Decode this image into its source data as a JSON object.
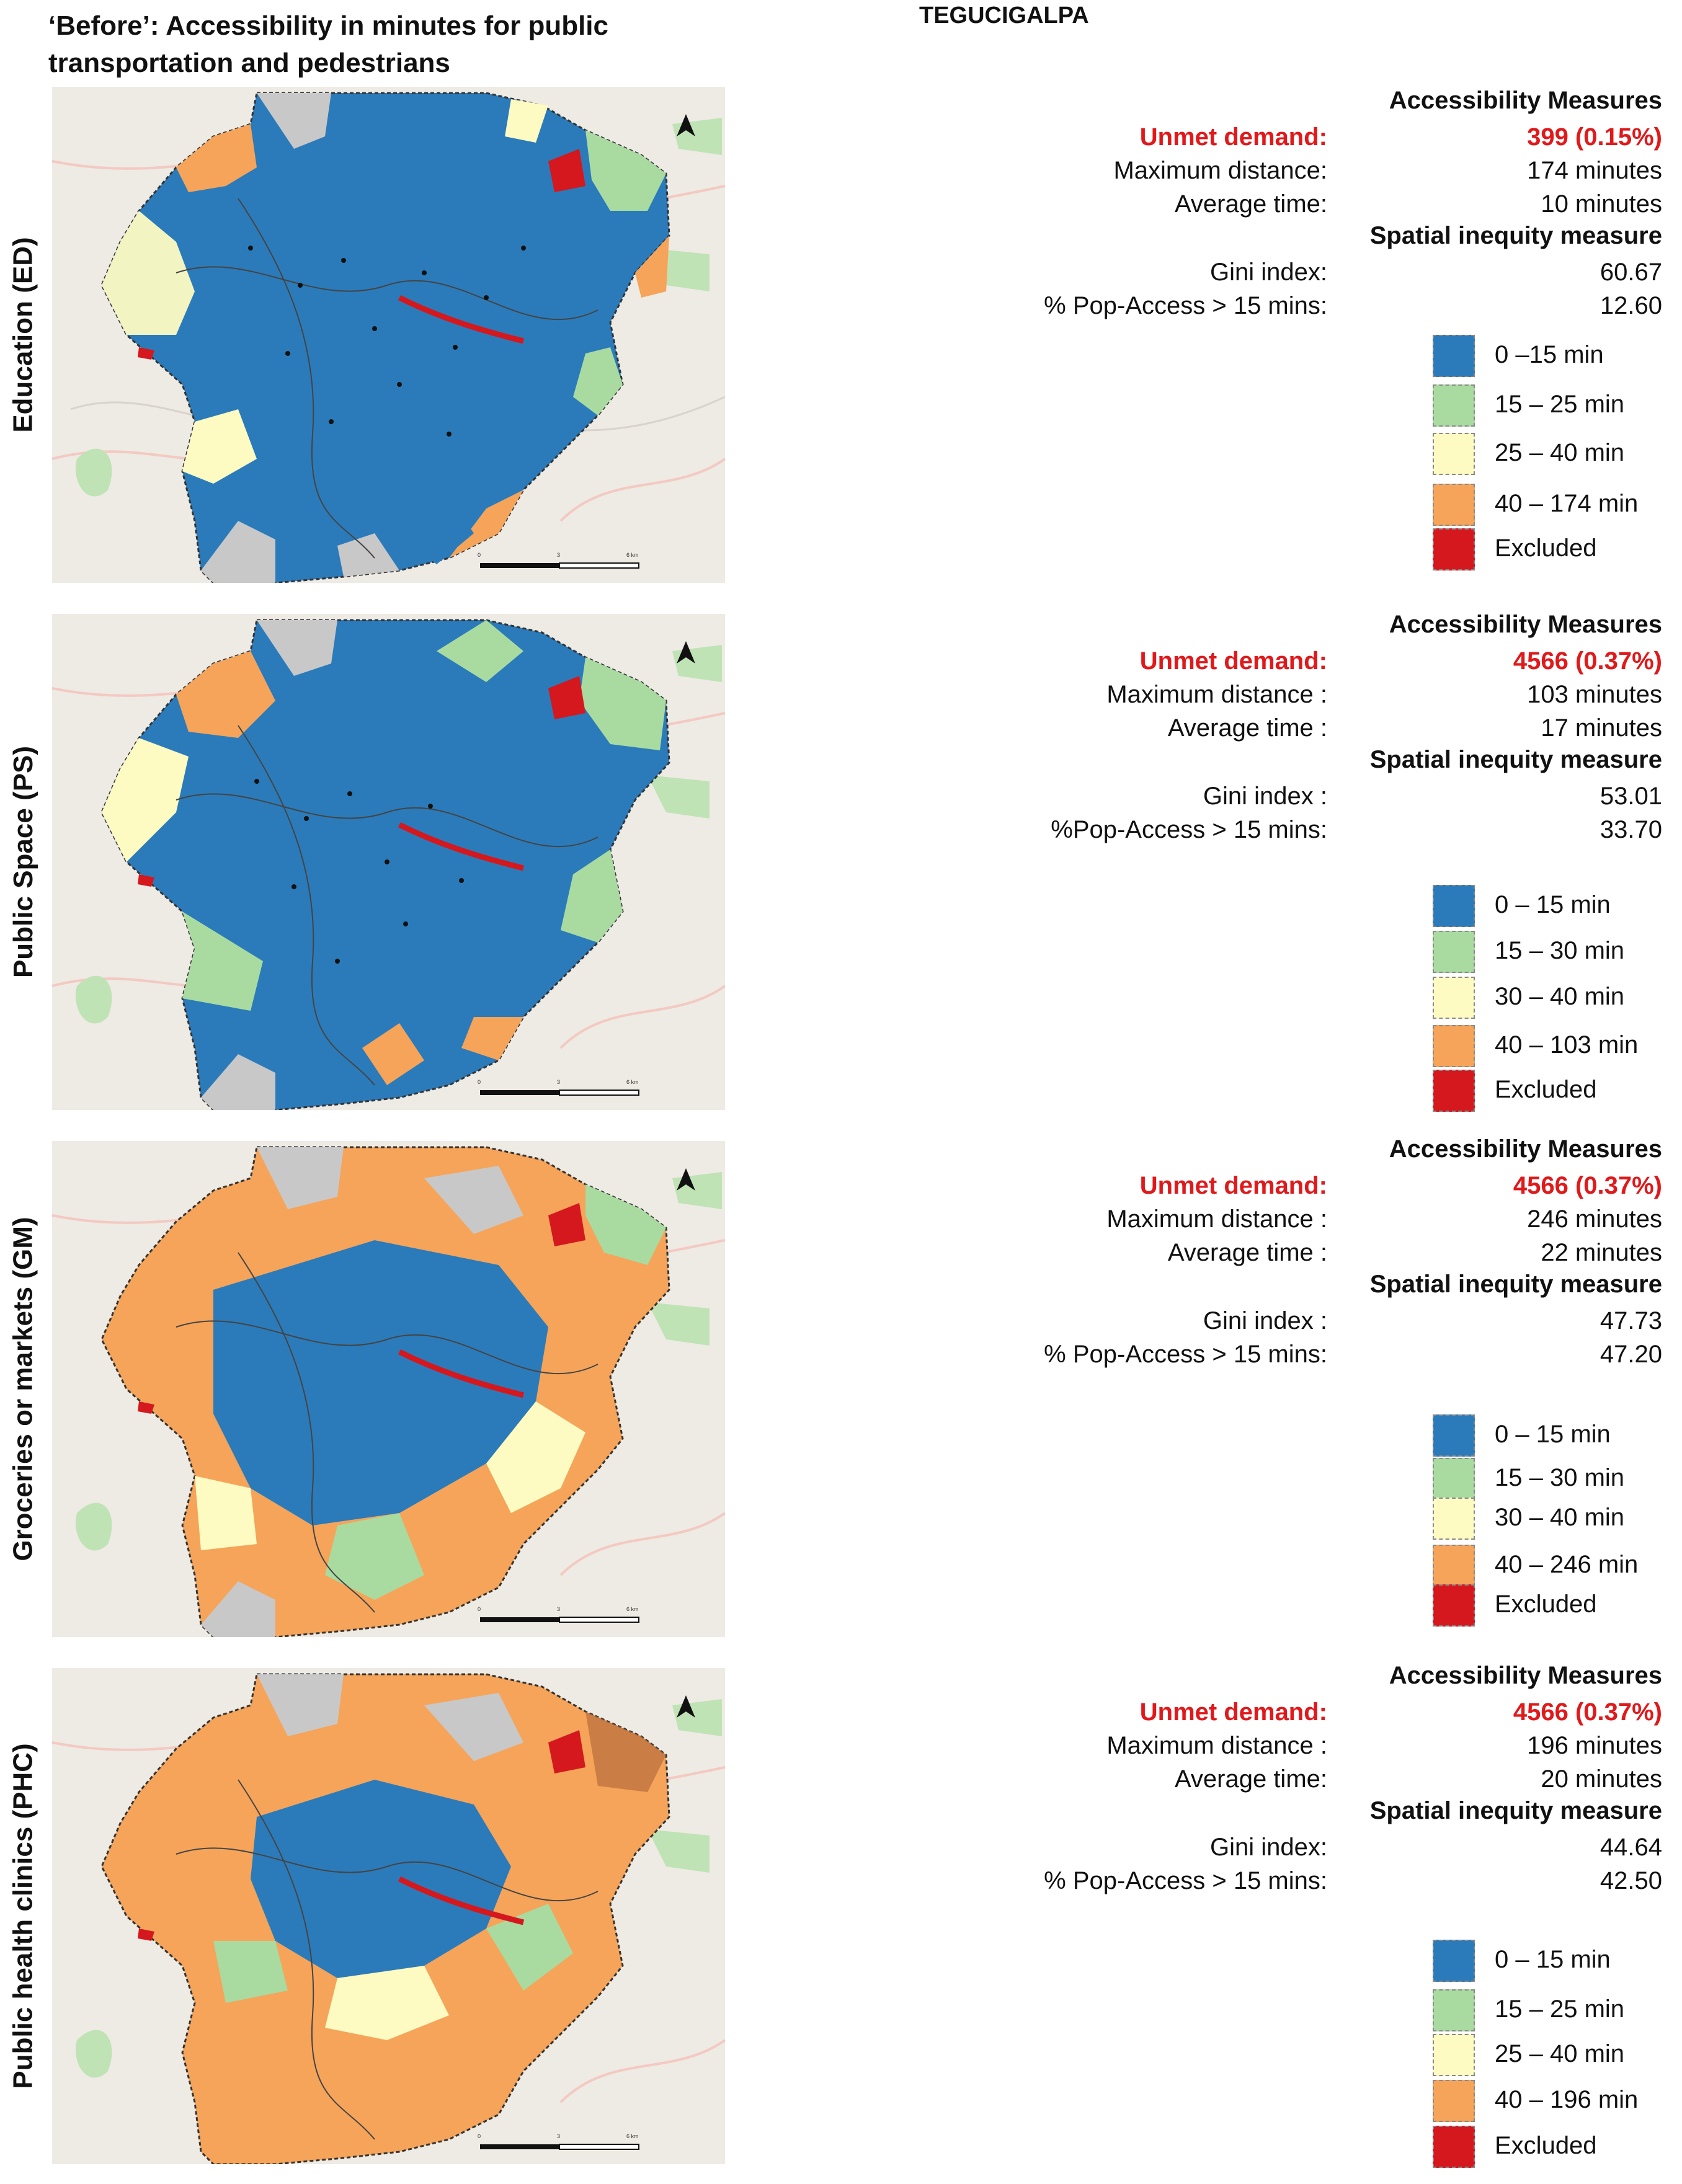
{
  "figure_title": "‘Before’: Accessibility in minutes for public transportation and pedestrians",
  "city": "TEGUCIGALPA",
  "colors": {
    "c0": "#2b7bba",
    "c1": "#a9dba0",
    "c2": "#fdfbc2",
    "c3": "#f5a45a",
    "excluded": "#d4181e",
    "basemap": "#eeeae4",
    "unmet": "#e0191b"
  },
  "map_common": {
    "north_icon": "north-arrow-icon",
    "scale_labels": [
      "0",
      "3",
      "6 km"
    ]
  },
  "panels": [
    {
      "label": "Education (ED)",
      "accessibility_header": "Accessibility Measures",
      "unmet_label": "Unmet demand:",
      "unmet_value": "399 (0.15%)",
      "max_label": "Maximum distance:",
      "max_value": "174 minutes",
      "avg_label": "Average time:",
      "avg_value": "10 minutes",
      "spatial_header": "Spatial inequity measure",
      "gini_label": "Gini index:",
      "gini_value": "60.67",
      "pop_label": "% Pop-Access > 15 mins:",
      "pop_value": "12.60",
      "legend": [
        "0 –15    min",
        "15 – 25    min",
        "25 – 40    min",
        "40 – 174 min",
        "Excluded"
      ]
    },
    {
      "label": "Public Space (PS)",
      "accessibility_header": "Accessibility Measures",
      "unmet_label": "Unmet demand:",
      "unmet_value": "4566 (0.37%)",
      "max_label": "Maximum distance :",
      "max_value": "103 minutes",
      "avg_label": "Average time :",
      "avg_value": "17 minutes",
      "spatial_header": "Spatial inequity measure",
      "gini_label": "Gini index :",
      "gini_value": "53.01",
      "pop_label": "%Pop-Access > 15 mins:",
      "pop_value": "33.70",
      "legend": [
        "0 – 15    min",
        "15 – 30    min",
        "30 – 40    min",
        "40 – 103  min",
        "Excluded"
      ]
    },
    {
      "label": "Groceries or markets (GM)",
      "accessibility_header": "Accessibility Measures",
      "unmet_label": "Unmet demand:",
      "unmet_value": "4566 (0.37%)",
      "max_label": "Maximum distance :",
      "max_value": "246 minutes",
      "avg_label": "Average time :",
      "avg_value": "22 minutes",
      "spatial_header": "Spatial inequity measure",
      "gini_label": "Gini index :",
      "gini_value": "47.73",
      "pop_label": "% Pop-Access > 15 mins:",
      "pop_value": "47.20",
      "legend": [
        "0 – 15    min",
        "15 – 30    min",
        "30 – 40    min",
        "40 – 246  min",
        "Excluded"
      ]
    },
    {
      "label": "Public health clinics (PHC)",
      "accessibility_header": "Accessibility Measures",
      "unmet_label": "Unmet demand:",
      "unmet_value": "4566 (0.37%)",
      "max_label": "Maximum distance :",
      "max_value": "196 minutes",
      "avg_label": "Average time:",
      "avg_value": "20 minutes",
      "spatial_header": "Spatial inequity measure",
      "gini_label": "Gini index:",
      "gini_value": "44.64",
      "pop_label": "% Pop-Access > 15 mins:",
      "pop_value": "42.50",
      "legend": [
        "0 – 15    min",
        "15 – 25    min",
        "25 – 40    min",
        "40 – 196  min",
        "Excluded"
      ]
    }
  ]
}
